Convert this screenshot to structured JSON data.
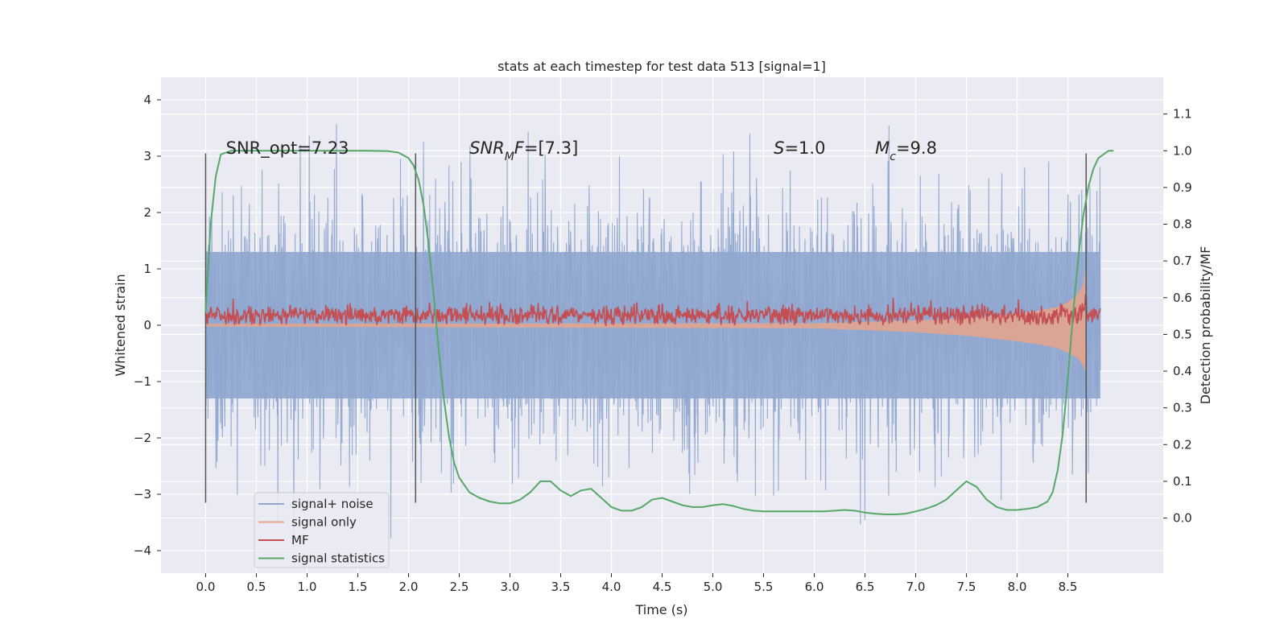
{
  "chart_data": {
    "type": "line",
    "title": "stats at each timestep for test data 513 [signal=1]",
    "xlabel": "Time (s)",
    "ylabel": "Whitened strain",
    "ylabel_right": "Detection probability/MF",
    "xlim": [
      -0.44,
      9.44
    ],
    "ylim": [
      -4.4,
      4.4
    ],
    "ylim_right": [
      -0.15,
      1.2
    ],
    "x_ticks": [
      0.0,
      0.5,
      1.0,
      1.5,
      2.0,
      2.5,
      3.0,
      3.5,
      4.0,
      4.5,
      5.0,
      5.5,
      6.0,
      6.5,
      7.0,
      7.5,
      8.0,
      8.5
    ],
    "y_ticks": [
      4,
      3,
      2,
      1,
      0,
      -1,
      -2,
      -3,
      -4
    ],
    "y_tick_labels": [
      "4",
      "3",
      "2",
      "1",
      "0",
      "−1",
      "−2",
      "−3",
      "−4"
    ],
    "y_right_ticks": [
      1.1,
      1.0,
      0.9,
      0.8,
      0.7,
      0.6,
      0.5,
      0.4,
      0.3,
      0.2,
      0.1,
      0.0
    ],
    "grid": true,
    "legend_position": "lower-left",
    "annotations": [
      {
        "text": "SNR_opt=7.23",
        "x": 0.2,
        "y": 3.1
      },
      {
        "text_parts": [
          {
            "t": "SNR",
            "i": true
          },
          {
            "t": "M",
            "i": true,
            "sub": true
          },
          {
            "t": "F=[7.3]",
            "i": false,
            "i_first": true
          }
        ],
        "x": 2.6,
        "y": 3.1
      },
      {
        "text_parts": [
          {
            "t": "S",
            "i": true
          },
          {
            "t": "=1.0",
            "i": false
          }
        ],
        "x": 5.6,
        "y": 3.1
      },
      {
        "text_parts": [
          {
            "t": "M",
            "i": true
          },
          {
            "t": "c",
            "i": true,
            "sub": true
          },
          {
            "t": "=9.8",
            "i": false
          }
        ],
        "x": 6.6,
        "y": 3.1
      }
    ],
    "vertical_lines": [
      {
        "x": 0.0,
        "y_from": -3.15,
        "y_to": 3.05
      },
      {
        "x": 2.07,
        "y_from": -3.15,
        "y_to": 3.05
      },
      {
        "x": 8.68,
        "y_from": -3.15,
        "y_to": 3.05
      }
    ],
    "series": [
      {
        "name": "signal+ noise",
        "color": "#8fa6cf",
        "axis": "left",
        "x_range": [
          0.0,
          8.82
        ],
        "envelope": {
          "band_low": -1.3,
          "band_high": 1.3,
          "peak_high": 3.9,
          "peak_low": -4.0
        }
      },
      {
        "name": "signal only",
        "color": "#e8a58c",
        "axis": "left",
        "x": [
          0.0,
          6.0,
          6.5,
          7.0,
          7.5,
          8.0,
          8.2,
          8.4,
          8.5,
          8.6,
          8.65,
          8.68
        ],
        "y_upper": [
          0.02,
          0.03,
          0.05,
          0.08,
          0.12,
          0.2,
          0.25,
          0.32,
          0.4,
          0.55,
          0.7,
          1.0
        ],
        "y_lower": [
          -0.02,
          -0.05,
          -0.08,
          -0.12,
          -0.18,
          -0.28,
          -0.33,
          -0.4,
          -0.48,
          -0.58,
          -0.7,
          -0.85
        ]
      },
      {
        "name": "MF",
        "color": "#c44e52",
        "axis": "left",
        "x_range": [
          0.0,
          8.82
        ],
        "band": [
          0.0,
          0.45
        ]
      },
      {
        "name": "signal statistics",
        "color": "#55a868",
        "axis": "right",
        "x": [
          0.0,
          0.05,
          0.1,
          0.15,
          0.25,
          0.4,
          0.6,
          0.8,
          1.0,
          1.2,
          1.4,
          1.6,
          1.8,
          1.9,
          2.0,
          2.05,
          2.1,
          2.15,
          2.2,
          2.25,
          2.3,
          2.35,
          2.4,
          2.45,
          2.5,
          2.6,
          2.7,
          2.8,
          2.9,
          3.0,
          3.1,
          3.2,
          3.3,
          3.4,
          3.5,
          3.6,
          3.7,
          3.8,
          3.9,
          4.0,
          4.1,
          4.2,
          4.3,
          4.4,
          4.5,
          4.6,
          4.7,
          4.8,
          4.9,
          5.0,
          5.1,
          5.2,
          5.3,
          5.4,
          5.5,
          5.6,
          5.7,
          5.8,
          5.9,
          6.0,
          6.1,
          6.2,
          6.3,
          6.4,
          6.5,
          6.6,
          6.7,
          6.8,
          6.9,
          7.0,
          7.1,
          7.2,
          7.3,
          7.4,
          7.5,
          7.6,
          7.7,
          7.8,
          7.9,
          8.0,
          8.1,
          8.2,
          8.3,
          8.35,
          8.4,
          8.45,
          8.5,
          8.55,
          8.6,
          8.65,
          8.7,
          8.75,
          8.8,
          8.85,
          8.9,
          8.95
        ],
        "y": [
          0.56,
          0.8,
          0.93,
          0.99,
          1.0,
          1.0,
          1.0,
          1.0,
          1.0,
          1.0,
          1.0,
          1.0,
          0.999,
          0.995,
          0.98,
          0.96,
          0.92,
          0.85,
          0.74,
          0.6,
          0.45,
          0.32,
          0.22,
          0.15,
          0.11,
          0.07,
          0.055,
          0.045,
          0.04,
          0.04,
          0.05,
          0.07,
          0.1,
          0.1,
          0.075,
          0.06,
          0.075,
          0.08,
          0.055,
          0.03,
          0.02,
          0.02,
          0.03,
          0.05,
          0.055,
          0.045,
          0.035,
          0.03,
          0.03,
          0.035,
          0.038,
          0.033,
          0.025,
          0.02,
          0.018,
          0.018,
          0.018,
          0.018,
          0.018,
          0.018,
          0.018,
          0.02,
          0.022,
          0.02,
          0.015,
          0.012,
          0.01,
          0.01,
          0.012,
          0.018,
          0.025,
          0.035,
          0.05,
          0.075,
          0.1,
          0.085,
          0.05,
          0.03,
          0.022,
          0.022,
          0.025,
          0.03,
          0.045,
          0.07,
          0.13,
          0.23,
          0.38,
          0.55,
          0.7,
          0.82,
          0.9,
          0.95,
          0.98,
          0.99,
          1.0,
          1.0
        ]
      }
    ]
  }
}
